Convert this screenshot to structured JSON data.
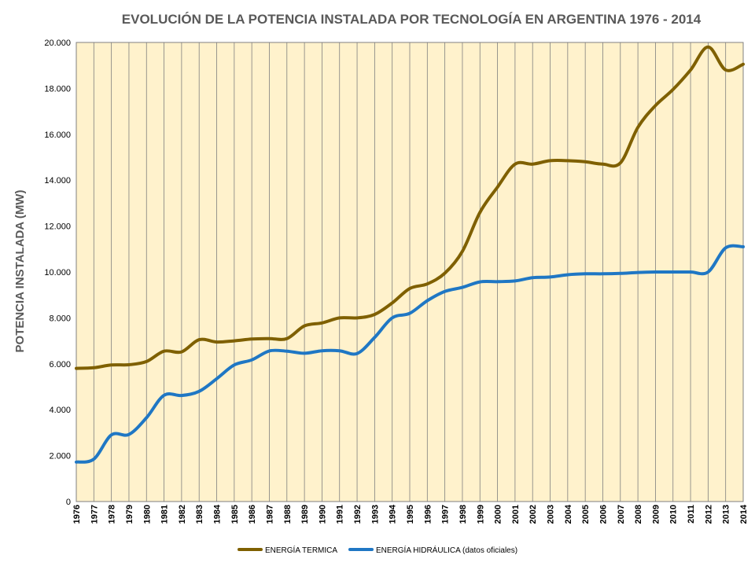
{
  "chart_data": {
    "type": "line",
    "title": "EVOLUCIÓN DE LA POTENCIA INSTALADA POR TECNOLOGÍA EN ARGENTINA 1976 - 2014",
    "xlabel": "",
    "ylabel": "POTENCIA INSTALADA (MW)",
    "ylim": [
      0,
      20000
    ],
    "yticks": [
      0,
      2000,
      4000,
      6000,
      8000,
      10000,
      12000,
      14000,
      16000,
      18000,
      20000
    ],
    "ytick_labels": [
      "0",
      "2.000",
      "4.000",
      "6.000",
      "8.000",
      "10.000",
      "12.000",
      "14.000",
      "16.000",
      "18.000",
      "20.000"
    ],
    "grid": "vertical",
    "legend_position": "bottom",
    "categories": [
      "1976",
      "1977",
      "1978",
      "1979",
      "1980",
      "1981",
      "1982",
      "1983",
      "1984",
      "1985",
      "1986",
      "1987",
      "1988",
      "1989",
      "1990",
      "1991",
      "1992",
      "1993",
      "1994",
      "1995",
      "1996",
      "1997",
      "1998",
      "1999",
      "2000",
      "2001",
      "2002",
      "2003",
      "2004",
      "2005",
      "2006",
      "2007",
      "2008",
      "2009",
      "2010",
      "2011",
      "2012",
      "2013",
      "2014"
    ],
    "series": [
      {
        "name": "ENERGÍA TERMICA",
        "color": "#7F6000",
        "values": [
          5800,
          5830,
          5950,
          5960,
          6100,
          6550,
          6520,
          7050,
          6950,
          7000,
          7080,
          7100,
          7100,
          7650,
          7780,
          8000,
          8000,
          8150,
          8650,
          9280,
          9480,
          9950,
          10900,
          12600,
          13700,
          14700,
          14700,
          14850,
          14850,
          14800,
          14700,
          14750,
          16300,
          17250,
          17950,
          18800,
          19800,
          18800,
          19050
        ]
      },
      {
        "name": "ENERGÍA HIDRÁULICA (datos oficiales)",
        "color": "#1F77C4",
        "values": [
          1720,
          1850,
          2900,
          2920,
          3650,
          4630,
          4620,
          4800,
          5350,
          5950,
          6170,
          6560,
          6550,
          6460,
          6570,
          6570,
          6450,
          7150,
          8000,
          8200,
          8750,
          9150,
          9330,
          9570,
          9580,
          9610,
          9750,
          9780,
          9880,
          9920,
          9920,
          9940,
          9980,
          10000,
          10000,
          10000,
          10000,
          11050,
          11100
        ]
      }
    ]
  }
}
